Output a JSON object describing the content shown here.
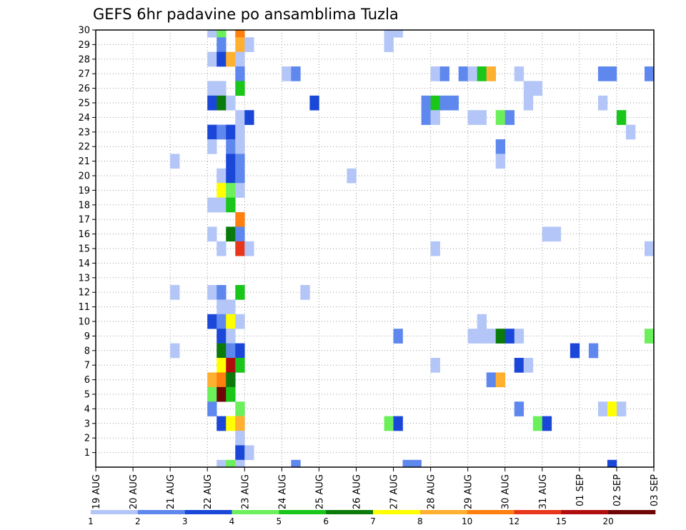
{
  "chart_data": {
    "type": "heatmap",
    "title": "GEFS 6hr padavine po ansamblima Tuzla",
    "x_tick_labels": [
      "19 AUG",
      "20 AUG",
      "21 AUG",
      "22 AUG",
      "23 AUG",
      "24 AUG",
      "25 AUG",
      "26 AUG",
      "27 AUG",
      "28 AUG",
      "29 AUG",
      "30 AUG",
      "31 AUG",
      "01 SEP",
      "02 SEP",
      "03 SEP"
    ],
    "x_unit": "6-hour step (4 per day)",
    "x_range": [
      0,
      60
    ],
    "y_tick_labels": [
      "1",
      "2",
      "3",
      "4",
      "5",
      "6",
      "7",
      "8",
      "9",
      "10",
      "11",
      "12",
      "13",
      "14",
      "15",
      "16",
      "17",
      "18",
      "19",
      "20",
      "21",
      "22",
      "23",
      "24",
      "25",
      "26",
      "27",
      "28",
      "29",
      "30"
    ],
    "y_range": [
      0,
      30
    ],
    "grid": true,
    "legend": {
      "placement": "bottom",
      "labels": [
        "1",
        "2",
        "3",
        "4",
        "5",
        "6",
        "7",
        "8",
        "10",
        "12",
        "15",
        "20"
      ],
      "colors": [
        "#b3c6f7",
        "#5f88ee",
        "#1b47d9",
        "#6bf05c",
        "#19c619",
        "#0a7a0a",
        "#ffff00",
        "#ffb030",
        "#ff7f0f",
        "#e8361a",
        "#b00e0e",
        "#6e0606"
      ]
    },
    "cells": [
      {
        "x": 12,
        "y": 30,
        "c": 0
      },
      {
        "x": 13,
        "y": 30,
        "c": 3
      },
      {
        "x": 15,
        "y": 30,
        "c": 8
      },
      {
        "x": 13,
        "y": 29,
        "c": 1
      },
      {
        "x": 15,
        "y": 29,
        "c": 7
      },
      {
        "x": 16,
        "y": 29,
        "c": 0
      },
      {
        "x": 12,
        "y": 28,
        "c": 0
      },
      {
        "x": 13,
        "y": 28,
        "c": 2
      },
      {
        "x": 14,
        "y": 28,
        "c": 7
      },
      {
        "x": 15,
        "y": 28,
        "c": 0
      },
      {
        "x": 15,
        "y": 27,
        "c": 1
      },
      {
        "x": 12,
        "y": 26,
        "c": 0
      },
      {
        "x": 13,
        "y": 26,
        "c": 0
      },
      {
        "x": 15,
        "y": 26,
        "c": 4
      },
      {
        "x": 12,
        "y": 25,
        "c": 2
      },
      {
        "x": 13,
        "y": 25,
        "c": 5
      },
      {
        "x": 14,
        "y": 25,
        "c": 0
      },
      {
        "x": 15,
        "y": 24,
        "c": 0
      },
      {
        "x": 16,
        "y": 24,
        "c": 2
      },
      {
        "x": 12,
        "y": 23,
        "c": 2
      },
      {
        "x": 13,
        "y": 23,
        "c": 1
      },
      {
        "x": 14,
        "y": 23,
        "c": 2
      },
      {
        "x": 15,
        "y": 23,
        "c": 0
      },
      {
        "x": 12,
        "y": 22,
        "c": 0
      },
      {
        "x": 14,
        "y": 22,
        "c": 1
      },
      {
        "x": 15,
        "y": 22,
        "c": 0
      },
      {
        "x": 14,
        "y": 21,
        "c": 2
      },
      {
        "x": 15,
        "y": 21,
        "c": 1
      },
      {
        "x": 13,
        "y": 20,
        "c": 0
      },
      {
        "x": 14,
        "y": 20,
        "c": 2
      },
      {
        "x": 15,
        "y": 20,
        "c": 1
      },
      {
        "x": 13,
        "y": 19,
        "c": 6
      },
      {
        "x": 14,
        "y": 19,
        "c": 3
      },
      {
        "x": 15,
        "y": 19,
        "c": 0
      },
      {
        "x": 12,
        "y": 18,
        "c": 0
      },
      {
        "x": 13,
        "y": 18,
        "c": 0
      },
      {
        "x": 14,
        "y": 18,
        "c": 4
      },
      {
        "x": 15,
        "y": 17,
        "c": 8
      },
      {
        "x": 12,
        "y": 16,
        "c": 0
      },
      {
        "x": 14,
        "y": 16,
        "c": 5
      },
      {
        "x": 15,
        "y": 16,
        "c": 1
      },
      {
        "x": 13,
        "y": 15,
        "c": 0
      },
      {
        "x": 15,
        "y": 15,
        "c": 9
      },
      {
        "x": 16,
        "y": 15,
        "c": 0
      },
      {
        "x": 12,
        "y": 12,
        "c": 0
      },
      {
        "x": 13,
        "y": 12,
        "c": 1
      },
      {
        "x": 15,
        "y": 12,
        "c": 4
      },
      {
        "x": 13,
        "y": 11,
        "c": 0
      },
      {
        "x": 14,
        "y": 11,
        "c": 0
      },
      {
        "x": 12,
        "y": 10,
        "c": 2
      },
      {
        "x": 13,
        "y": 10,
        "c": 1
      },
      {
        "x": 14,
        "y": 10,
        "c": 6
      },
      {
        "x": 15,
        "y": 10,
        "c": 0
      },
      {
        "x": 13,
        "y": 9,
        "c": 2
      },
      {
        "x": 14,
        "y": 9,
        "c": 0
      },
      {
        "x": 13,
        "y": 8,
        "c": 5
      },
      {
        "x": 14,
        "y": 8,
        "c": 1
      },
      {
        "x": 15,
        "y": 8,
        "c": 2
      },
      {
        "x": 13,
        "y": 7,
        "c": 6
      },
      {
        "x": 14,
        "y": 7,
        "c": 10
      },
      {
        "x": 15,
        "y": 7,
        "c": 4
      },
      {
        "x": 12,
        "y": 6,
        "c": 7
      },
      {
        "x": 13,
        "y": 6,
        "c": 8
      },
      {
        "x": 14,
        "y": 6,
        "c": 5
      },
      {
        "x": 12,
        "y": 5,
        "c": 3
      },
      {
        "x": 13,
        "y": 5,
        "c": 11
      },
      {
        "x": 14,
        "y": 5,
        "c": 4
      },
      {
        "x": 12,
        "y": 4,
        "c": 1
      },
      {
        "x": 15,
        "y": 4,
        "c": 3
      },
      {
        "x": 13,
        "y": 3,
        "c": 2
      },
      {
        "x": 14,
        "y": 3,
        "c": 6
      },
      {
        "x": 15,
        "y": 3,
        "c": 7
      },
      {
        "x": 15,
        "y": 2,
        "c": 0
      },
      {
        "x": 15,
        "y": 1,
        "c": 2
      },
      {
        "x": 16,
        "y": 1,
        "c": 0
      },
      {
        "x": 13,
        "y": 0,
        "c": 0
      },
      {
        "x": 14,
        "y": 0,
        "c": 3
      },
      {
        "x": 15,
        "y": 0,
        "c": 0
      },
      {
        "x": 8,
        "y": 21,
        "c": 0
      },
      {
        "x": 8,
        "y": 12,
        "c": 0
      },
      {
        "x": 8,
        "y": 8,
        "c": 0
      },
      {
        "x": 20,
        "y": 27,
        "c": 0
      },
      {
        "x": 21,
        "y": 27,
        "c": 1
      },
      {
        "x": 21,
        "y": 0,
        "c": 1
      },
      {
        "x": 22,
        "y": 12,
        "c": 0
      },
      {
        "x": 23,
        "y": 25,
        "c": 2
      },
      {
        "x": 27,
        "y": 20,
        "c": 0
      },
      {
        "x": 31,
        "y": 30,
        "c": 0
      },
      {
        "x": 31,
        "y": 29,
        "c": 0
      },
      {
        "x": 32,
        "y": 30,
        "c": 0
      },
      {
        "x": 31,
        "y": 3,
        "c": 3
      },
      {
        "x": 32,
        "y": 3,
        "c": 2
      },
      {
        "x": 32,
        "y": 9,
        "c": 1
      },
      {
        "x": 33,
        "y": 0,
        "c": 1
      },
      {
        "x": 34,
        "y": 0,
        "c": 1
      },
      {
        "x": 36,
        "y": 27,
        "c": 0
      },
      {
        "x": 37,
        "y": 27,
        "c": 1
      },
      {
        "x": 39,
        "y": 27,
        "c": 1
      },
      {
        "x": 40,
        "y": 27,
        "c": 0
      },
      {
        "x": 41,
        "y": 27,
        "c": 4
      },
      {
        "x": 42,
        "y": 27,
        "c": 7
      },
      {
        "x": 45,
        "y": 27,
        "c": 0
      },
      {
        "x": 35,
        "y": 25,
        "c": 1
      },
      {
        "x": 36,
        "y": 25,
        "c": 4
      },
      {
        "x": 37,
        "y": 25,
        "c": 1
      },
      {
        "x": 38,
        "y": 25,
        "c": 1
      },
      {
        "x": 35,
        "y": 24,
        "c": 1
      },
      {
        "x": 36,
        "y": 24,
        "c": 0
      },
      {
        "x": 40,
        "y": 24,
        "c": 0
      },
      {
        "x": 41,
        "y": 24,
        "c": 0
      },
      {
        "x": 43,
        "y": 24,
        "c": 3
      },
      {
        "x": 44,
        "y": 24,
        "c": 1
      },
      {
        "x": 43,
        "y": 22,
        "c": 1
      },
      {
        "x": 43,
        "y": 21,
        "c": 0
      },
      {
        "x": 36,
        "y": 15,
        "c": 0
      },
      {
        "x": 41,
        "y": 10,
        "c": 0
      },
      {
        "x": 40,
        "y": 9,
        "c": 0
      },
      {
        "x": 41,
        "y": 9,
        "c": 0
      },
      {
        "x": 42,
        "y": 9,
        "c": 0
      },
      {
        "x": 43,
        "y": 9,
        "c": 5
      },
      {
        "x": 44,
        "y": 9,
        "c": 2
      },
      {
        "x": 45,
        "y": 9,
        "c": 0
      },
      {
        "x": 36,
        "y": 7,
        "c": 0
      },
      {
        "x": 45,
        "y": 7,
        "c": 2
      },
      {
        "x": 46,
        "y": 7,
        "c": 0
      },
      {
        "x": 42,
        "y": 6,
        "c": 1
      },
      {
        "x": 43,
        "y": 6,
        "c": 7
      },
      {
        "x": 45,
        "y": 4,
        "c": 1
      },
      {
        "x": 47,
        "y": 3,
        "c": 3
      },
      {
        "x": 48,
        "y": 3,
        "c": 2
      },
      {
        "x": 46,
        "y": 26,
        "c": 0
      },
      {
        "x": 47,
        "y": 26,
        "c": 0
      },
      {
        "x": 46,
        "y": 25,
        "c": 0
      },
      {
        "x": 48,
        "y": 16,
        "c": 0
      },
      {
        "x": 49,
        "y": 16,
        "c": 0
      },
      {
        "x": 51,
        "y": 8,
        "c": 2
      },
      {
        "x": 53,
        "y": 8,
        "c": 1
      },
      {
        "x": 54,
        "y": 27,
        "c": 1
      },
      {
        "x": 55,
        "y": 27,
        "c": 1
      },
      {
        "x": 59,
        "y": 27,
        "c": 1
      },
      {
        "x": 54,
        "y": 25,
        "c": 0
      },
      {
        "x": 56,
        "y": 24,
        "c": 4
      },
      {
        "x": 57,
        "y": 23,
        "c": 0
      },
      {
        "x": 59,
        "y": 15,
        "c": 0
      },
      {
        "x": 59,
        "y": 9,
        "c": 3
      },
      {
        "x": 54,
        "y": 4,
        "c": 0
      },
      {
        "x": 55,
        "y": 4,
        "c": 6
      },
      {
        "x": 56,
        "y": 4,
        "c": 0
      },
      {
        "x": 55,
        "y": 0,
        "c": 2
      }
    ]
  }
}
